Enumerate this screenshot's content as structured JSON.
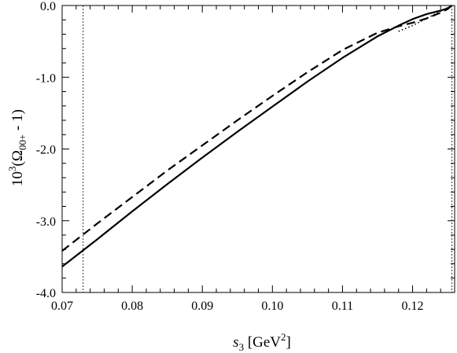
{
  "chart_data": {
    "type": "line",
    "xlabel": {
      "base": "s",
      "sub": "3",
      "unit_open": " [GeV",
      "sup": "2",
      "unit_close": "]"
    },
    "ylabel": {
      "prefix": "10",
      "sup": "3",
      "mid": "(Ω",
      "sub": "00+",
      "suffix": " - 1)"
    },
    "xlim": [
      0.07,
      0.126
    ],
    "ylim": [
      -4.0,
      0.0
    ],
    "xticks": [
      0.07,
      0.08,
      0.09,
      0.1,
      0.11,
      0.12
    ],
    "xtick_labels": [
      "0.07",
      "0.08",
      "0.09",
      "0.10",
      "0.11",
      "0.12"
    ],
    "yticks": [
      0.0,
      -1.0,
      -2.0,
      -3.0,
      -4.0
    ],
    "ytick_labels": [
      "0.0",
      "-1.0",
      "-2.0",
      "-3.0",
      "-4.0"
    ],
    "x_minor_per_major": 4,
    "y_minor_per_major": 4,
    "grid": false,
    "vertical_lines": [
      {
        "x": 0.073,
        "style": "dotted"
      },
      {
        "x": 0.1256,
        "style": "dotted"
      }
    ],
    "series": [
      {
        "style": "solid",
        "x": [
          0.07,
          0.075,
          0.08,
          0.085,
          0.09,
          0.095,
          0.1,
          0.105,
          0.11,
          0.115,
          0.118,
          0.12,
          0.122,
          0.124,
          0.125,
          0.1256
        ],
        "y": [
          -3.64,
          -3.26,
          -2.87,
          -2.49,
          -2.12,
          -1.76,
          -1.41,
          -1.06,
          -0.73,
          -0.43,
          -0.28,
          -0.19,
          -0.12,
          -0.07,
          -0.04,
          0.0
        ]
      },
      {
        "style": "dashed",
        "x": [
          0.07,
          0.075,
          0.08,
          0.085,
          0.09,
          0.095,
          0.1,
          0.105,
          0.11,
          0.115,
          0.118,
          0.12,
          0.122,
          0.124,
          0.125,
          0.1256
        ],
        "y": [
          -3.42,
          -3.04,
          -2.67,
          -2.3,
          -1.95,
          -1.6,
          -1.26,
          -0.93,
          -0.62,
          -0.38,
          -0.29,
          -0.24,
          -0.18,
          -0.1,
          -0.05,
          0.0
        ]
      },
      {
        "style": "dotted",
        "x": [
          0.118,
          0.119,
          0.12,
          0.121,
          0.122,
          0.123,
          0.124,
          0.125,
          0.1256
        ],
        "y": [
          -0.36,
          -0.32,
          -0.28,
          -0.23,
          -0.18,
          -0.13,
          -0.08,
          -0.03,
          0.0
        ]
      }
    ]
  }
}
